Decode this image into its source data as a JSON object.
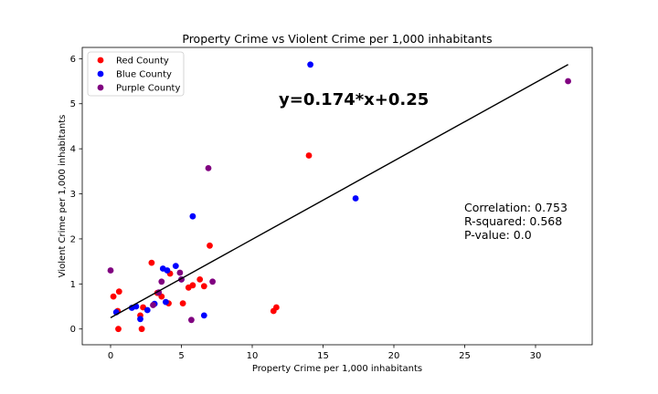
{
  "chart_data": {
    "type": "scatter",
    "title": "Property Crime vs Violent Crime per 1,000 inhabitants",
    "xlabel": "Property Crime per 1,000 inhabitants",
    "ylabel": "Violent Crime per 1,000 inhabitants",
    "xlim": [
      -2,
      34
    ],
    "ylim": [
      -0.35,
      6.25
    ],
    "xticks": [
      0,
      5,
      10,
      15,
      20,
      25,
      30
    ],
    "yticks": [
      0,
      1,
      2,
      3,
      4,
      5,
      6
    ],
    "grid": false,
    "legend_position": "upper-left",
    "series": [
      {
        "name": "Red County",
        "color": "#ff0000",
        "points": [
          [
            0.2,
            0.72
          ],
          [
            0.5,
            0.4
          ],
          [
            0.6,
            0.83
          ],
          [
            0.55,
            0.0
          ],
          [
            2.1,
            0.3
          ],
          [
            2.2,
            0.0
          ],
          [
            2.3,
            0.48
          ],
          [
            2.9,
            1.47
          ],
          [
            3.3,
            0.8
          ],
          [
            3.6,
            0.72
          ],
          [
            4.1,
            0.57
          ],
          [
            4.2,
            1.23
          ],
          [
            5.1,
            0.57
          ],
          [
            5.5,
            0.92
          ],
          [
            5.8,
            0.97
          ],
          [
            6.3,
            1.1
          ],
          [
            6.6,
            0.95
          ],
          [
            7.0,
            1.85
          ],
          [
            11.5,
            0.4
          ],
          [
            11.7,
            0.48
          ],
          [
            14.0,
            3.85
          ]
        ]
      },
      {
        "name": "Blue County",
        "color": "#0000ff",
        "points": [
          [
            0.4,
            0.37
          ],
          [
            1.5,
            0.47
          ],
          [
            1.8,
            0.5
          ],
          [
            2.1,
            0.22
          ],
          [
            2.6,
            0.42
          ],
          [
            3.1,
            0.56
          ],
          [
            3.7,
            1.34
          ],
          [
            3.9,
            0.6
          ],
          [
            4.0,
            1.3
          ],
          [
            4.6,
            1.4
          ],
          [
            5.0,
            1.1
          ],
          [
            5.8,
            2.5
          ],
          [
            6.6,
            0.3
          ],
          [
            14.1,
            5.87
          ],
          [
            17.3,
            2.9
          ]
        ]
      },
      {
        "name": "Purple County",
        "color": "#800080",
        "points": [
          [
            0.0,
            1.3
          ],
          [
            3.0,
            0.53
          ],
          [
            3.4,
            0.81
          ],
          [
            3.6,
            1.05
          ],
          [
            4.9,
            1.25
          ],
          [
            5.0,
            1.1
          ],
          [
            5.7,
            0.2
          ],
          [
            6.9,
            3.57
          ],
          [
            7.2,
            1.05
          ],
          [
            32.3,
            5.5
          ]
        ]
      }
    ],
    "regression": {
      "slope": 0.174,
      "intercept": 0.25,
      "x_range": [
        0,
        32.3
      ],
      "equation_label": "y=0.174*x+0.25"
    },
    "stats": {
      "correlation": "Correlation: 0.753",
      "r_squared": "R-squared: 0.568",
      "p_value": "P-value: 0.0"
    }
  }
}
